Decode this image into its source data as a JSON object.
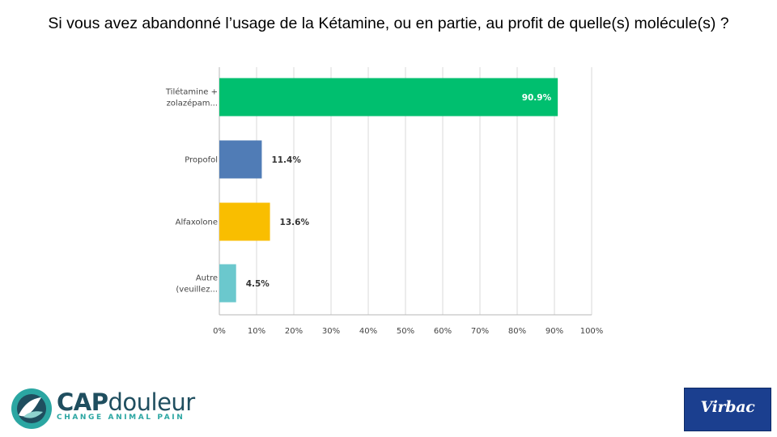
{
  "slide": {
    "title": "Si vous avez abandonné l’usage de la Kétamine, ou en partie, au profit de quelle(s) molécule(s) ?"
  },
  "logos": {
    "left_cap": "CAP",
    "left_douleur": "douleur",
    "left_tagline": "CHANGE ANIMAL PAIN",
    "right": "Virbac"
  },
  "colors": {
    "bar_tiletamine": "#00bf6f",
    "bar_propofol": "#507cb6",
    "bar_alfaxolone": "#f9be00",
    "bar_autre": "#6bc8cd",
    "grid": "#d9d9d9",
    "axis": "#b7b7b7",
    "cap_teal": "#2ba6a2",
    "cap_navy": "#1f4e5f",
    "virbac_blue": "#1b3f8f"
  },
  "chart_data": {
    "type": "bar",
    "orientation": "horizontal",
    "categories": [
      [
        "Tilétamine +",
        "zolazépam..."
      ],
      [
        "Propofol"
      ],
      [
        "Alfaxolone"
      ],
      [
        "Autre",
        "(veuillez..."
      ]
    ],
    "values": [
      90.9,
      11.4,
      13.6,
      4.5
    ],
    "value_labels": [
      "90.9%",
      "11.4%",
      "13.6%",
      "4.5%"
    ],
    "label_inside": [
      true,
      false,
      false,
      false
    ],
    "xlim": [
      0,
      100
    ],
    "xticks": [
      0,
      10,
      20,
      30,
      40,
      50,
      60,
      70,
      80,
      90,
      100
    ],
    "xtick_labels": [
      "0%",
      "10%",
      "20%",
      "30%",
      "40%",
      "50%",
      "60%",
      "70%",
      "80%",
      "90%",
      "100%"
    ],
    "grid": true,
    "legend": "none",
    "title": "",
    "xlabel": "",
    "ylabel": ""
  }
}
